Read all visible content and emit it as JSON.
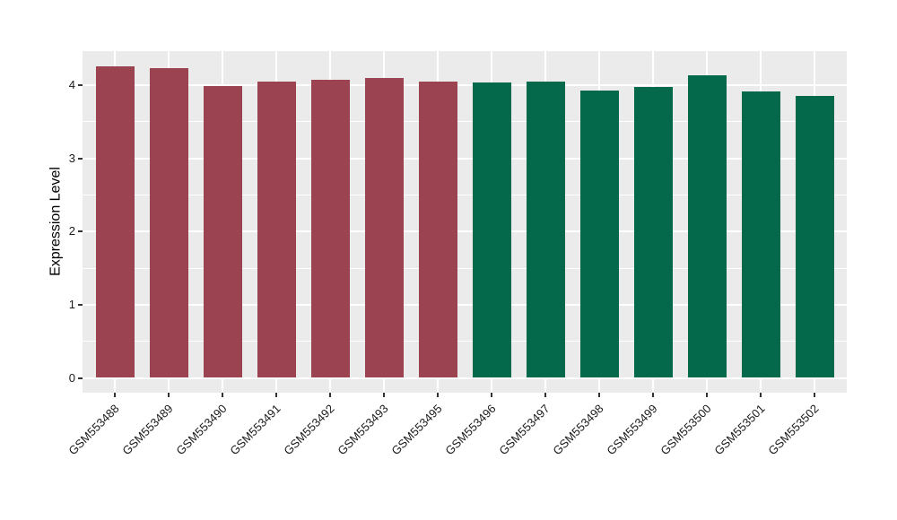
{
  "figure": {
    "background": "#FFFFFF",
    "panel_background": "#EBEBEB",
    "grid_color": "#FFFFFF",
    "tick_mark_color": "#333333",
    "axis_text_color": "#1A1A1A",
    "group_colors": {
      "left_group": "#9B4351",
      "right_group": "#04694A"
    }
  },
  "chart_data": {
    "type": "bar",
    "title": "",
    "xlabel": "",
    "ylabel": "Expression Level",
    "yticks": [
      0,
      1,
      2,
      3,
      4
    ],
    "ylim": [
      -0.21,
      4.47
    ],
    "grid": "white major and minor horizontal gridlines, white vertical gridlines at category centers, on gray panel",
    "legend": "none",
    "categories": [
      "GSM553488",
      "GSM553489",
      "GSM553490",
      "GSM553491",
      "GSM553492",
      "GSM553493",
      "GSM553495",
      "GSM553496",
      "GSM553497",
      "GSM553498",
      "GSM553499",
      "GSM553500",
      "GSM553501",
      "GSM553502"
    ],
    "values": [
      4.26,
      4.23,
      3.99,
      4.05,
      4.07,
      4.1,
      4.05,
      4.04,
      4.05,
      3.93,
      3.98,
      4.14,
      3.92,
      3.85
    ],
    "colors": [
      "#9B4351",
      "#9B4351",
      "#9B4351",
      "#9B4351",
      "#9B4351",
      "#9B4351",
      "#9B4351",
      "#04694A",
      "#04694A",
      "#04694A",
      "#04694A",
      "#04694A",
      "#04694A",
      "#04694A"
    ]
  }
}
